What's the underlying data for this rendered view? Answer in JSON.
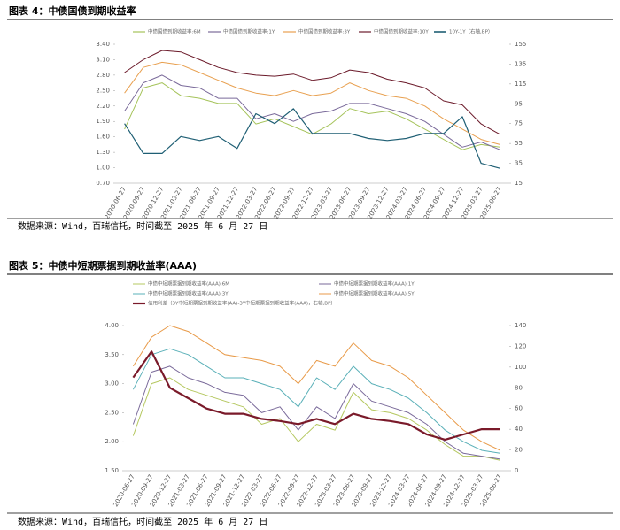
{
  "chart_data": [
    {
      "type": "line",
      "title": "图表 4：中债国债到期收益率",
      "source": "数据来源：Wind，百瑞信托，时间截至 2025 年 6 月 27 日",
      "categories": [
        "2020-06-27",
        "2020-09-27",
        "2020-12-27",
        "2021-03-27",
        "2021-06-27",
        "2021-09-27",
        "2021-12-27",
        "2022-03-27",
        "2022-06-27",
        "2022-09-27",
        "2022-12-27",
        "2023-03-27",
        "2023-06-27",
        "2023-09-27",
        "2023-12-27",
        "2024-03-27",
        "2024-06-27",
        "2024-09-27",
        "2024-12-27",
        "2025-03-27",
        "2025-06-27"
      ],
      "series": [
        {
          "name": "中债国债到期收益率:6M",
          "color": "#a5c35a",
          "values": [
            1.75,
            2.55,
            2.65,
            2.4,
            2.35,
            2.25,
            2.25,
            1.85,
            1.95,
            1.8,
            1.65,
            1.85,
            2.15,
            2.05,
            2.1,
            1.95,
            1.75,
            1.55,
            1.35,
            1.45,
            1.4
          ]
        },
        {
          "name": "中债国债到期收益率:1Y",
          "color": "#7a6a9a",
          "values": [
            2.1,
            2.65,
            2.8,
            2.6,
            2.55,
            2.35,
            2.35,
            1.95,
            2.05,
            1.9,
            2.05,
            2.1,
            2.25,
            2.25,
            2.15,
            2.05,
            1.9,
            1.65,
            1.4,
            1.5,
            1.35
          ]
        },
        {
          "name": "中债国债到期收益率:3Y",
          "color": "#e8a050",
          "values": [
            2.45,
            2.95,
            3.05,
            3.0,
            2.85,
            2.7,
            2.55,
            2.45,
            2.4,
            2.5,
            2.4,
            2.45,
            2.65,
            2.5,
            2.4,
            2.35,
            2.2,
            1.95,
            1.75,
            1.55,
            1.45
          ]
        },
        {
          "name": "中债国债到期收益率:10Y",
          "color": "#6b1a2a",
          "values": [
            2.85,
            3.1,
            3.28,
            3.25,
            3.1,
            2.95,
            2.85,
            2.8,
            2.78,
            2.82,
            2.7,
            2.75,
            2.9,
            2.85,
            2.72,
            2.65,
            2.55,
            2.3,
            2.22,
            1.85,
            1.65
          ]
        },
        {
          "name": "10Y-1Y（右轴,BP）",
          "color": "#1f5f74",
          "axis": "y2",
          "values": [
            75,
            45,
            45,
            62,
            58,
            62,
            50,
            85,
            75,
            90,
            65,
            65,
            65,
            60,
            58,
            60,
            65,
            65,
            82,
            35,
            30
          ]
        }
      ],
      "ylim": [
        0.7,
        3.4
      ],
      "yticks": [
        {
          "value": 0.7,
          "label": "0.70"
        },
        {
          "value": 1,
          "label": "1.00"
        },
        {
          "value": 1.3,
          "label": "1.30"
        },
        {
          "value": 1.6,
          "label": "1.60"
        },
        {
          "value": 1.9,
          "label": "1.90"
        },
        {
          "value": 2.2,
          "label": "2.20"
        },
        {
          "value": 2.5,
          "label": "2.50"
        },
        {
          "value": 2.8,
          "label": "2.80"
        },
        {
          "value": 3.1,
          "label": "3.10"
        },
        {
          "value": 3.4,
          "label": "3.40"
        }
      ],
      "y2lim": [
        15,
        155
      ],
      "y2ticks": [
        15,
        35,
        55,
        75,
        95,
        115,
        135,
        155
      ]
    },
    {
      "type": "line",
      "title": "图表 5：中债中短期票据到期收益率(AAA)",
      "source": "数据来源：Wind，百瑞信托，时间截至 2025 年 6 月 27 日",
      "categories": [
        "2020-06-27",
        "2020-09-27",
        "2020-12-27",
        "2021-03-27",
        "2021-06-27",
        "2021-09-27",
        "2021-12-27",
        "2022-03-27",
        "2022-06-27",
        "2022-09-27",
        "2022-12-27",
        "2023-03-27",
        "2023-06-27",
        "2023-09-27",
        "2023-12-27",
        "2024-03-27",
        "2024-06-27",
        "2024-09-27",
        "2024-12-27",
        "2025-03-27",
        "2025-06-27"
      ],
      "series": [
        {
          "name": "中债中短期票据到期收益率(AAA):6M",
          "color": "#b5c860",
          "values": [
            2.1,
            3.0,
            3.1,
            2.9,
            2.8,
            2.7,
            2.6,
            2.3,
            2.4,
            2.0,
            2.3,
            2.2,
            2.85,
            2.55,
            2.5,
            2.4,
            2.2,
            1.95,
            1.75,
            1.75,
            1.68
          ]
        },
        {
          "name": "中债中短期票据到期收益率(AAA):1Y",
          "color": "#7a6a9a",
          "values": [
            2.3,
            3.2,
            3.3,
            3.1,
            3.0,
            2.85,
            2.8,
            2.5,
            2.6,
            2.2,
            2.6,
            2.4,
            3.0,
            2.7,
            2.6,
            2.5,
            2.3,
            2.0,
            1.8,
            1.75,
            1.7
          ]
        },
        {
          "name": "中债中短期票据到期收益率(AAA):3Y",
          "color": "#5ab0b8",
          "values": [
            2.9,
            3.5,
            3.6,
            3.5,
            3.3,
            3.1,
            3.1,
            3.0,
            2.9,
            2.6,
            3.1,
            2.9,
            3.3,
            3.0,
            2.9,
            2.75,
            2.5,
            2.2,
            2.0,
            1.85,
            1.8
          ]
        },
        {
          "name": "中债中短期票据到期收益率(AAA):5Y",
          "color": "#e89a48",
          "values": [
            3.3,
            3.8,
            4.0,
            3.9,
            3.7,
            3.5,
            3.45,
            3.4,
            3.3,
            3.0,
            3.4,
            3.3,
            3.7,
            3.4,
            3.3,
            3.1,
            2.8,
            2.5,
            2.2,
            2.0,
            1.85
          ]
        },
        {
          "name": "信用利差（3Y中短期票据到期收益率(AA)-3Y中短期票据到期收益率(AAA)，右轴,BP）",
          "color": "#7a1a2a",
          "axis": "y2",
          "values": [
            90,
            115,
            80,
            70,
            60,
            55,
            55,
            50,
            48,
            45,
            50,
            45,
            55,
            50,
            48,
            45,
            35,
            30,
            35,
            40,
            40
          ]
        }
      ],
      "ylim": [
        1.5,
        4.0
      ],
      "yticks": [
        {
          "value": 1.5,
          "label": "1.50"
        },
        {
          "value": 2,
          "label": "2.00"
        },
        {
          "value": 2.5,
          "label": "2.50"
        },
        {
          "value": 3,
          "label": "3.00"
        },
        {
          "value": 3.5,
          "label": "3.50"
        },
        {
          "value": 4,
          "label": "4.00"
        }
      ],
      "y2lim": [
        0,
        140
      ],
      "y2ticks": [
        0,
        20,
        40,
        60,
        80,
        100,
        120,
        140
      ]
    }
  ]
}
